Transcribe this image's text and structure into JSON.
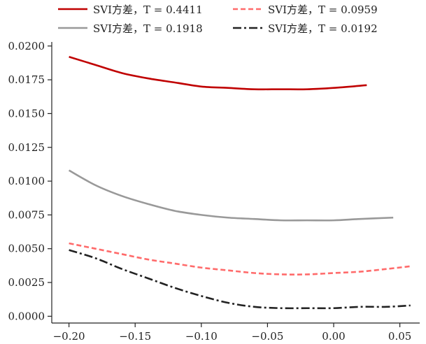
{
  "chart_data": {
    "type": "line",
    "title": "",
    "xlabel": "",
    "ylabel": "",
    "xlim": [
      -0.213,
      0.065
    ],
    "ylim": [
      -0.0005,
      0.0203
    ],
    "xticks": [
      -0.2,
      -0.15,
      -0.1,
      -0.05,
      0.0,
      0.05
    ],
    "xtick_labels": [
      "−0.20",
      "−0.15",
      "−0.10",
      "−0.05",
      "0.00",
      "0.05"
    ],
    "yticks": [
      0.0,
      0.0025,
      0.005,
      0.0075,
      0.01,
      0.0125,
      0.015,
      0.0175,
      0.02
    ],
    "ytick_labels": [
      "0.0000",
      "0.0025",
      "0.0050",
      "0.0075",
      "0.0100",
      "0.0125",
      "0.0150",
      "0.0175",
      "0.0200"
    ],
    "grid": false,
    "legend_position": "top",
    "series": [
      {
        "name": "SVI方差，T = 0.4411",
        "color": "#c00000",
        "style": "solid",
        "x": [
          -0.2,
          -0.18,
          -0.16,
          -0.14,
          -0.12,
          -0.1,
          -0.08,
          -0.06,
          -0.04,
          -0.02,
          0.0,
          0.025
        ],
        "y": [
          0.0192,
          0.0186,
          0.018,
          0.0176,
          0.0173,
          0.017,
          0.0169,
          0.0168,
          0.0168,
          0.0168,
          0.0169,
          0.0171
        ]
      },
      {
        "name": "SVI方差，T = 0.1918",
        "color": "#999999",
        "style": "solid",
        "x": [
          -0.2,
          -0.18,
          -0.16,
          -0.14,
          -0.12,
          -0.1,
          -0.08,
          -0.06,
          -0.04,
          -0.02,
          0.0,
          0.02,
          0.045
        ],
        "y": [
          0.0108,
          0.0097,
          0.0089,
          0.0083,
          0.0078,
          0.0075,
          0.0073,
          0.0072,
          0.0071,
          0.0071,
          0.0071,
          0.0072,
          0.0073
        ]
      },
      {
        "name": "SVI方差，T = 0.0959",
        "color": "#ff6b6b",
        "style": "dashed",
        "x": [
          -0.2,
          -0.18,
          -0.16,
          -0.14,
          -0.12,
          -0.1,
          -0.08,
          -0.06,
          -0.04,
          -0.02,
          0.0,
          0.02,
          0.04,
          0.058
        ],
        "y": [
          0.0054,
          0.005,
          0.0046,
          0.0042,
          0.0039,
          0.0036,
          0.0034,
          0.0032,
          0.0031,
          0.0031,
          0.0032,
          0.0033,
          0.0035,
          0.0037
        ]
      },
      {
        "name": "SVI方差，T = 0.0192",
        "color": "#222222",
        "style": "dashdot",
        "x": [
          -0.2,
          -0.18,
          -0.16,
          -0.14,
          -0.12,
          -0.1,
          -0.08,
          -0.06,
          -0.04,
          -0.02,
          0.0,
          0.02,
          0.04,
          0.058
        ],
        "y": [
          0.0049,
          0.0043,
          0.0035,
          0.0028,
          0.0021,
          0.0015,
          0.001,
          0.0007,
          0.0006,
          0.0006,
          0.0006,
          0.0007,
          0.0007,
          0.0008
        ]
      }
    ]
  }
}
